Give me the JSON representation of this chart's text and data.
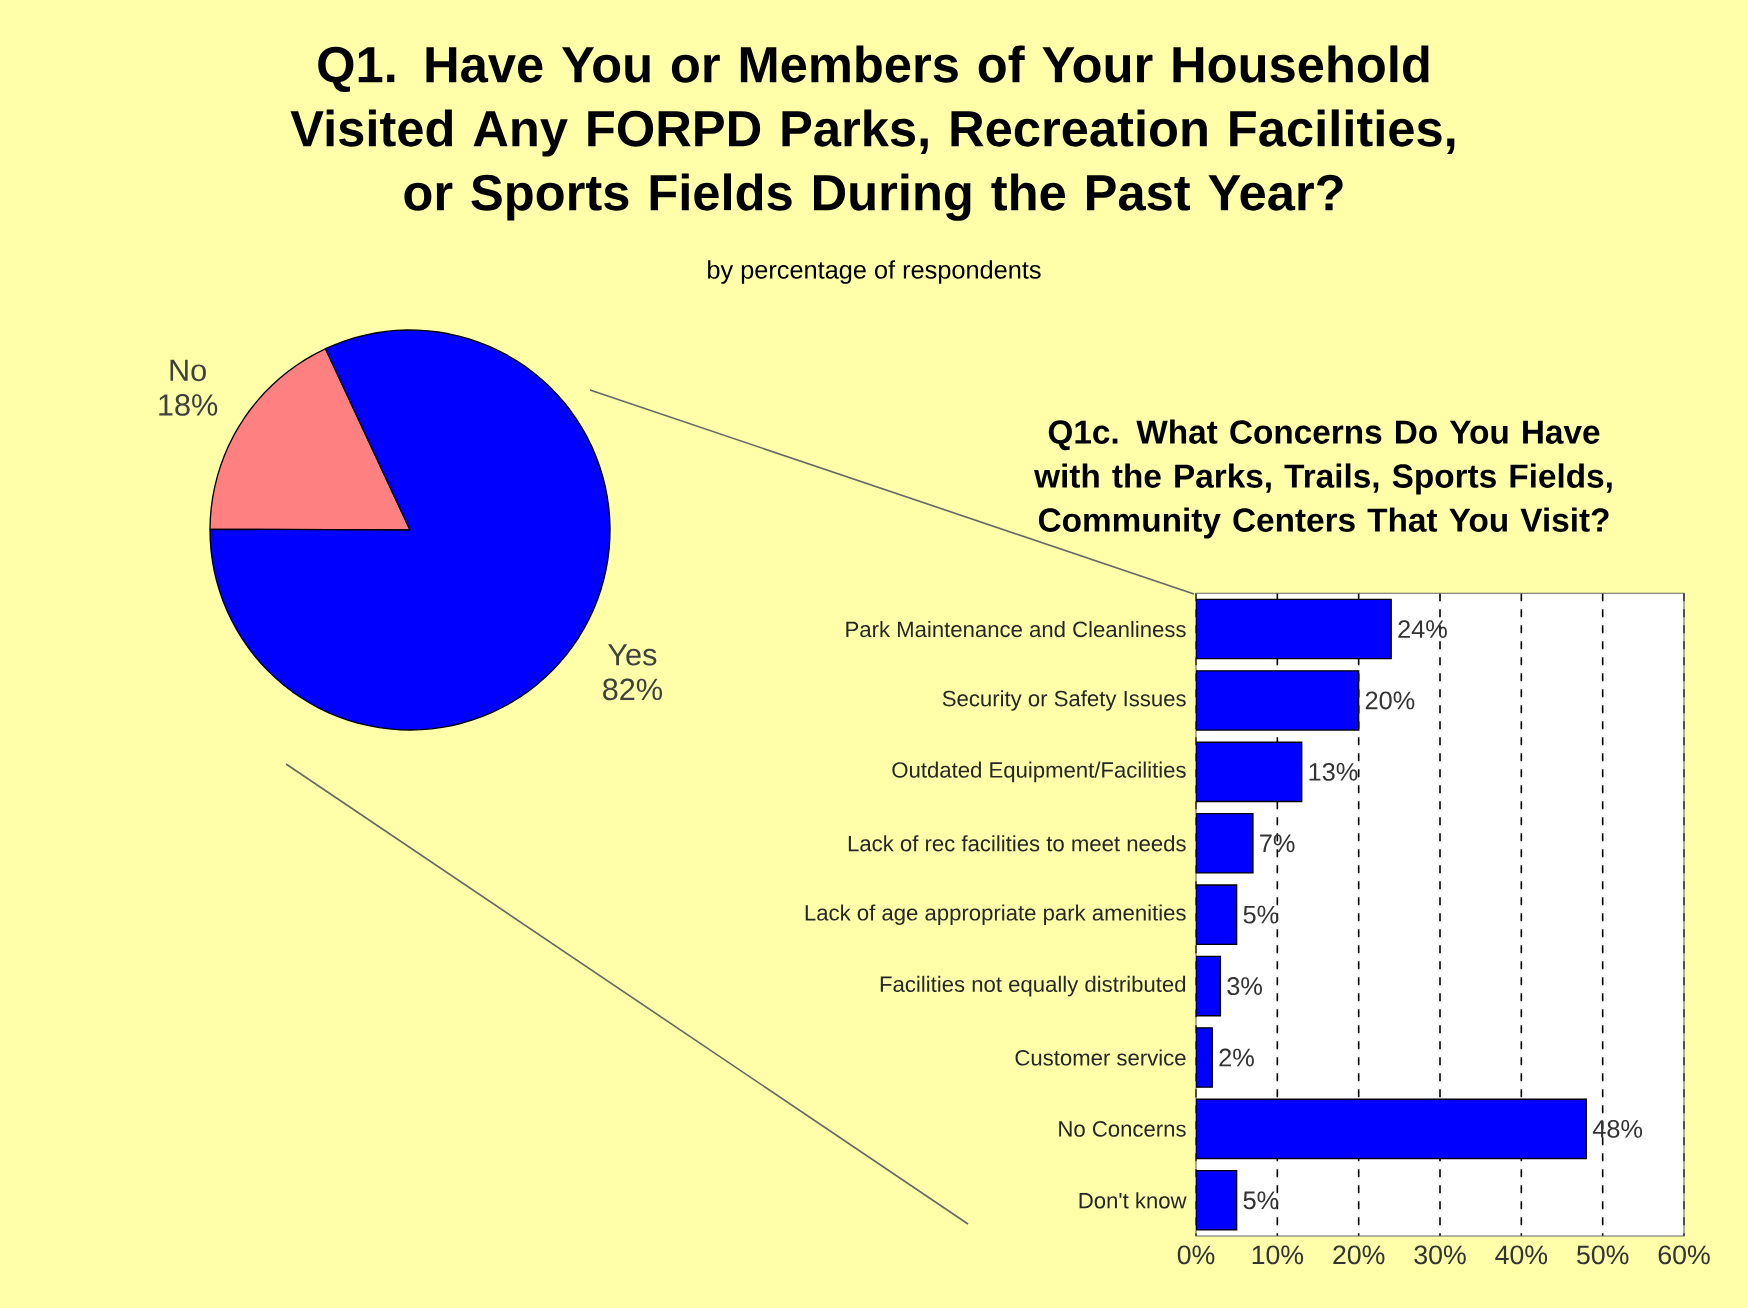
{
  "chart_data": [
    {
      "type": "pie",
      "title": "Q1. Have You or Members of Your Household Visited Any FORPD Parks, Recreation Facilities, or Sports Fields During the Past Year?",
      "subtitle": "by percentage of respondents",
      "categories": [
        "No",
        "Yes"
      ],
      "values": [
        18,
        82
      ],
      "colors": [
        "#ff8080",
        "#0000ff"
      ],
      "value_labels": [
        "18%",
        "82%"
      ]
    },
    {
      "type": "bar",
      "orientation": "horizontal",
      "title": "Q1c. What Concerns Do You Have with the Parks, Trails, Sports Fields, Community Centers That You Visit?",
      "categories": [
        "Park Maintenance and Cleanliness",
        "Security or Safety Issues",
        "Outdated Equipment/Facilities",
        "Lack of rec facilities to meet needs",
        "Lack of age appropriate park amenities",
        "Facilities not equally distributed",
        "Customer service",
        "No Concerns",
        "Don't know"
      ],
      "values": [
        24,
        20,
        13,
        7,
        5,
        3,
        2,
        48,
        5
      ],
      "color": "#0000ff",
      "value_labels": [
        "24%",
        "20%",
        "13%",
        "7%",
        "5%",
        "3%",
        "2%",
        "48%",
        "5%"
      ],
      "xlim": [
        0,
        60
      ],
      "xticks": [
        {
          "value": 0,
          "label": "0%"
        },
        {
          "value": 10,
          "label": "10%"
        },
        {
          "value": 20,
          "label": "20%"
        },
        {
          "value": 30,
          "label": "30%"
        },
        {
          "value": 40,
          "label": "40%"
        },
        {
          "value": 50,
          "label": "50%"
        },
        {
          "value": 60,
          "label": "60%"
        }
      ],
      "grid": "x"
    }
  ]
}
